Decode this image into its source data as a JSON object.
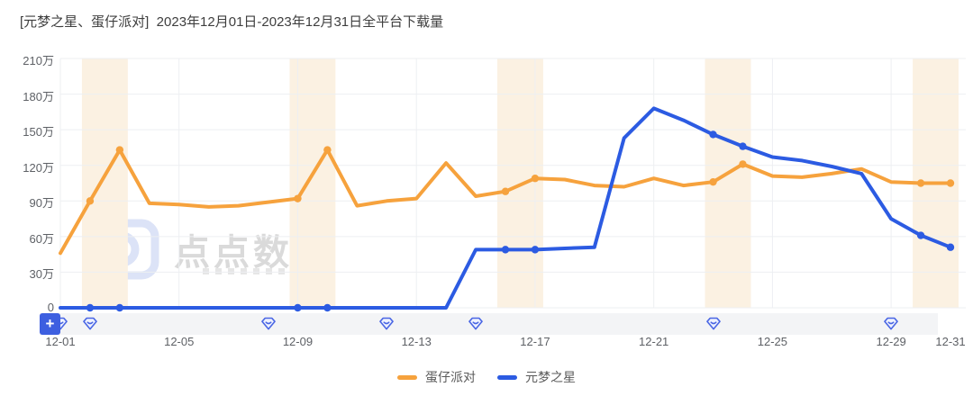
{
  "title": "[元梦之星、蛋仔派对]  2023年12月01日-2023年12月31日全平台下载量",
  "watermark_text": "点点数据",
  "toolbar": {
    "add_label": "+"
  },
  "colors": {
    "orange": "#F6A23D",
    "blue": "#2C5BE2",
    "weekend_band": "#FBF1E2",
    "grid": "#EDEFF2",
    "axis_text": "#5E6166",
    "title_text": "#3E3E3E",
    "strip_bg": "#F3F4F6",
    "button_bg": "#3D5FE0",
    "gem": "#4A66E4",
    "watermark_gray": "#DADADA",
    "watermark_logo": "#DCE3F7",
    "watermark_dot": "#F6CBC5"
  },
  "chart_data": {
    "type": "line",
    "title": "[元梦之星、蛋仔派对] 2023年12月01日-2023年12月31日全平台下载量",
    "unit": "万",
    "ylim": [
      0,
      210
    ],
    "grid": true,
    "legend_position": "bottom",
    "x": [
      "12-01",
      "12-02",
      "12-03",
      "12-04",
      "12-05",
      "12-06",
      "12-07",
      "12-08",
      "12-09",
      "12-10",
      "12-11",
      "12-12",
      "12-13",
      "12-14",
      "12-15",
      "12-16",
      "12-17",
      "12-18",
      "12-19",
      "12-20",
      "12-21",
      "12-22",
      "12-23",
      "12-24",
      "12-25",
      "12-26",
      "12-27",
      "12-28",
      "12-29",
      "12-30",
      "12-31"
    ],
    "series": [
      {
        "name": "蛋仔派对",
        "color": "#F6A23D",
        "values": [
          46,
          90,
          133,
          88,
          87,
          85,
          86,
          89,
          92,
          133,
          86,
          90,
          92,
          122,
          94,
          98,
          109,
          108,
          103,
          102,
          109,
          103,
          106,
          121,
          111,
          110,
          113,
          117,
          106,
          105,
          105
        ]
      },
      {
        "name": "元梦之星",
        "color": "#2C5BE2",
        "values": [
          0,
          0,
          0,
          0,
          0,
          0,
          0,
          0,
          0,
          0,
          0,
          0,
          0,
          0,
          49,
          49,
          49,
          50,
          51,
          143,
          168,
          158,
          146,
          136,
          127,
          124,
          119,
          113,
          75,
          61,
          51
        ]
      }
    ],
    "y_ticks": [
      {
        "value": 0,
        "label": "0"
      },
      {
        "value": 30,
        "label": "30万"
      },
      {
        "value": 60,
        "label": "60万"
      },
      {
        "value": 90,
        "label": "90万"
      },
      {
        "value": 120,
        "label": "120万"
      },
      {
        "value": 150,
        "label": "150万"
      },
      {
        "value": 180,
        "label": "180万"
      },
      {
        "value": 210,
        "label": "210万"
      }
    ],
    "x_ticks": [
      {
        "day": 1,
        "label": "12-01"
      },
      {
        "day": 5,
        "label": "12-05"
      },
      {
        "day": 9,
        "label": "12-09"
      },
      {
        "day": 13,
        "label": "12-13"
      },
      {
        "day": 17,
        "label": "12-17"
      },
      {
        "day": 21,
        "label": "12-21"
      },
      {
        "day": 25,
        "label": "12-25"
      },
      {
        "day": 29,
        "label": "12-29"
      },
      {
        "day": 31,
        "label": "12-31"
      }
    ],
    "weekend_band_days": [
      [
        2,
        3
      ],
      [
        9,
        10
      ],
      [
        16,
        17
      ],
      [
        23,
        24
      ],
      [
        30,
        31
      ]
    ],
    "weekend_marker_days": [
      2,
      3,
      9,
      10,
      16,
      17,
      23,
      24,
      30,
      31
    ],
    "event_marker_days": [
      1,
      2,
      8,
      12,
      15,
      23,
      29
    ]
  }
}
